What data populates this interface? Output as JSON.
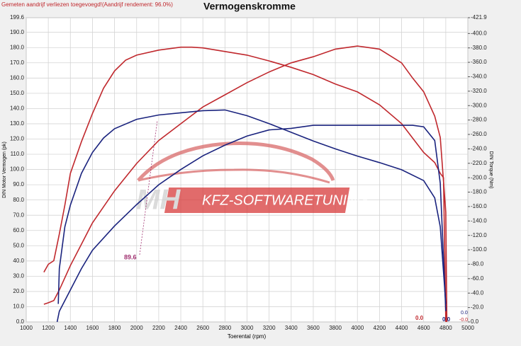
{
  "chart_data": {
    "type": "line",
    "title": "Vermogenskromme",
    "subtitle": "Gemeten aandrijf verliezen toegevoegd!(Aandrijf rendement: 96.0%)",
    "xlabel": "Toerental (rpm)",
    "ylabel": "DIN Motor Vermogen (pk)",
    "y2label": "DIN Torque (Nm)",
    "xlim": [
      1000,
      5000
    ],
    "xticks": [
      1000,
      1200,
      1400,
      1600,
      1800,
      2000,
      2200,
      2400,
      2600,
      2800,
      3000,
      3200,
      3400,
      3600,
      3800,
      4000,
      4200,
      4400,
      4600,
      4800,
      5000
    ],
    "ylim": [
      0,
      199.6
    ],
    "yticks": [
      {
        "value": 0,
        "label": "0.0"
      },
      {
        "value": 10,
        "label": "10.0"
      },
      {
        "value": 20,
        "label": "20.0"
      },
      {
        "value": 30,
        "label": "30.0"
      },
      {
        "value": 40,
        "label": "40.0"
      },
      {
        "value": 50,
        "label": "50.0"
      },
      {
        "value": 60,
        "label": "60.0"
      },
      {
        "value": 70,
        "label": "70.0"
      },
      {
        "value": 80,
        "label": "80.0"
      },
      {
        "value": 90,
        "label": "90.0"
      },
      {
        "value": 100,
        "label": "100.0"
      },
      {
        "value": 110,
        "label": "110.0"
      },
      {
        "value": 120,
        "label": "120.0"
      },
      {
        "value": 130,
        "label": "130.0"
      },
      {
        "value": 140,
        "label": "140.0"
      },
      {
        "value": 150,
        "label": "150.0"
      },
      {
        "value": 160,
        "label": "160.0"
      },
      {
        "value": 170,
        "label": "170.0"
      },
      {
        "value": 180,
        "label": "180.0"
      },
      {
        "value": 190,
        "label": "190.0"
      },
      {
        "value": 199.6,
        "label": "199.6"
      }
    ],
    "y2lim": [
      0,
      421.9
    ],
    "y2ticks": [
      {
        "value": 0,
        "label": "0.0"
      },
      {
        "value": 20,
        "label": "-20.0"
      },
      {
        "value": 40,
        "label": "-40.0"
      },
      {
        "value": 60,
        "label": "-60.0"
      },
      {
        "value": 80,
        "label": "-80.0"
      },
      {
        "value": 100,
        "label": "-100.0"
      },
      {
        "value": 120,
        "label": "-120.0"
      },
      {
        "value": 140,
        "label": "-140.0"
      },
      {
        "value": 160,
        "label": "-160.0"
      },
      {
        "value": 180,
        "label": "-180.0"
      },
      {
        "value": 200,
        "label": "-200.0"
      },
      {
        "value": 220,
        "label": "-220.0"
      },
      {
        "value": 240,
        "label": "-240.0"
      },
      {
        "value": 260,
        "label": "-260.0"
      },
      {
        "value": 280,
        "label": "-280.0"
      },
      {
        "value": 300,
        "label": "-300.0"
      },
      {
        "value": 320,
        "label": "-320.0"
      },
      {
        "value": 340,
        "label": "-340.0"
      },
      {
        "value": 360,
        "label": "-360.0"
      },
      {
        "value": 380,
        "label": "-380.0"
      },
      {
        "value": 400,
        "label": "-400.0"
      },
      {
        "value": 421.9,
        "label": "-421.9"
      }
    ],
    "grid": true,
    "series": [
      {
        "color": "#c0282d",
        "axis": "y2",
        "x": [
          1160,
          1200,
          1250,
          1300,
          1350,
          1400,
          1500,
          1600,
          1700,
          1800,
          1900,
          2000,
          2200,
          2400,
          2500,
          2600,
          2800,
          3000,
          3200,
          3400,
          3600,
          3800,
          4000,
          4200,
          4400,
          4500,
          4600,
          4700,
          4750,
          4780,
          4800
        ],
        "values": [
          69,
          80,
          85,
          122,
          162,
          206,
          250,
          289,
          324,
          348,
          363,
          370,
          377,
          381,
          381,
          380,
          375,
          370,
          362,
          353,
          343,
          330,
          319,
          301,
          275,
          255,
          235,
          221,
          206,
          200,
          0
        ]
      },
      {
        "color": "#c0282d",
        "axis": "y",
        "x": [
          1160,
          1200,
          1250,
          1300,
          1400,
          1500,
          1600,
          1800,
          2000,
          2200,
          2400,
          2600,
          2800,
          3000,
          3200,
          3400,
          3600,
          3800,
          4000,
          4200,
          4400,
          4500,
          4600,
          4700,
          4750,
          4800,
          4810
        ],
        "values": [
          11.6,
          12.6,
          14,
          21,
          37,
          51,
          65,
          86,
          104,
          119,
          130,
          141,
          149,
          157,
          164,
          170,
          174,
          179,
          181,
          179,
          170,
          160,
          151,
          135,
          121,
          72,
          0
        ]
      },
      {
        "color": "#1a237e",
        "axis": "y2",
        "x": [
          1290,
          1300,
          1350,
          1400,
          1500,
          1600,
          1700,
          1800,
          2000,
          2200,
          2400,
          2600,
          2800,
          3000,
          3200,
          3400,
          3600,
          3800,
          4000,
          4200,
          4400,
          4600,
          4700,
          4750,
          4800
        ],
        "values": [
          25,
          74,
          132,
          162,
          206,
          235,
          255,
          268,
          281,
          287,
          290,
          293,
          294,
          286,
          275,
          263,
          251,
          240,
          230,
          221,
          211,
          196,
          172,
          132,
          25
        ]
      },
      {
        "color": "#1a237e",
        "axis": "y",
        "x": [
          1280,
          1300,
          1400,
          1500,
          1600,
          1800,
          2000,
          2200,
          2400,
          2600,
          2800,
          3000,
          3200,
          3400,
          3600,
          3800,
          4000,
          4200,
          4400,
          4500,
          4600,
          4700,
          4750,
          4800
        ],
        "values": [
          0,
          7,
          21,
          35,
          47,
          63,
          77,
          90,
          100,
          109,
          116,
          122,
          126,
          127,
          129,
          129,
          129,
          129,
          129,
          129,
          128,
          119,
          91,
          7
        ]
      }
    ],
    "annotations": [
      "89.6",
      "0.0",
      "0.0",
      "0.0",
      "-0.0"
    ],
    "watermark": [
      "MH",
      "KFZ-SOFTWARETUNING"
    ]
  }
}
